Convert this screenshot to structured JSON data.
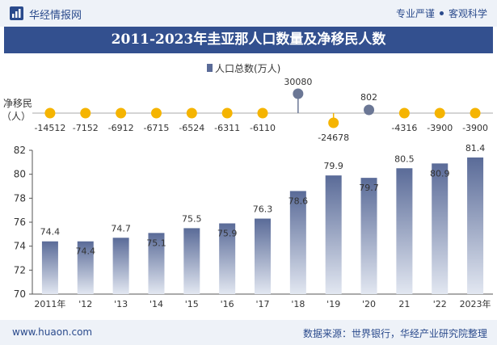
{
  "header": {
    "brand": "华经情报网",
    "tagline_left": "专业严谨",
    "tagline_right": "客观科学"
  },
  "title": "2011-2023年圭亚那人口数量及净移民人数",
  "footer": {
    "site": "www.huaon.com",
    "source": "数据来源：世界银行，华经产业研究院整理"
  },
  "colors": {
    "header_bg": "#eef2f8",
    "title_bg": "#33508f",
    "bar_top": "#5a6b98",
    "bar_bottom": "#e2e7f1",
    "dot_yellow": "#f5b400",
    "dot_gray": "#6b7795",
    "axis": "#555555"
  },
  "chart_data": {
    "type": "bar",
    "categories": [
      "2011年",
      "'12",
      "'13",
      "'14",
      "'15",
      "'16",
      "'17",
      "'18",
      "'19",
      "'20",
      "21",
      "'22",
      "2023年"
    ],
    "legend": "人口总数(万人)",
    "series": [
      {
        "name": "人口总数(万人)",
        "values": [
          74.4,
          74.4,
          74.7,
          75.1,
          75.5,
          75.9,
          76.3,
          78.6,
          79.9,
          79.7,
          80.5,
          80.9,
          81.4
        ]
      }
    ],
    "ylim": [
      70,
      82
    ],
    "yticks": [
      70,
      72,
      74,
      76,
      78,
      80,
      82
    ],
    "net_migration": {
      "label_line1": "净移民",
      "label_line2": "（人）",
      "values": [
        -14512,
        -7152,
        -6912,
        -6715,
        -6524,
        -6311,
        -6110,
        30080,
        -24678,
        802,
        -4316,
        -3900,
        -3900
      ]
    }
  }
}
